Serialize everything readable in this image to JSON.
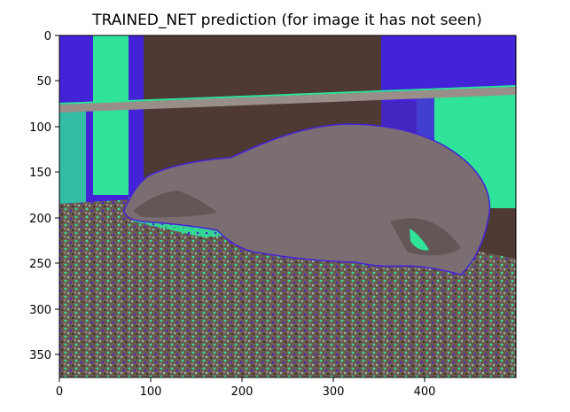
{
  "figure": {
    "title": "TRAINED_NET prediction (for image it has not seen)",
    "image_subject": "Animal lying on gravel ground in front of a fence, rendered with a false-color feature map",
    "x_axis": {
      "range": [
        0,
        500
      ],
      "ticks": [
        "0",
        "100",
        "200",
        "300",
        "400"
      ]
    },
    "y_axis": {
      "range": [
        0,
        375
      ],
      "inverted": true,
      "ticks": [
        "0",
        "50",
        "100",
        "150",
        "200",
        "250",
        "300",
        "350"
      ]
    },
    "colors": {
      "animal": "#7b6e72",
      "animal_dark": "#5a4b4a",
      "background_dark": "#4e3a33",
      "green": "#2fe39a",
      "blue": "#4422d8",
      "ground": "#6b5a50",
      "rail": "#9a8e88"
    }
  }
}
